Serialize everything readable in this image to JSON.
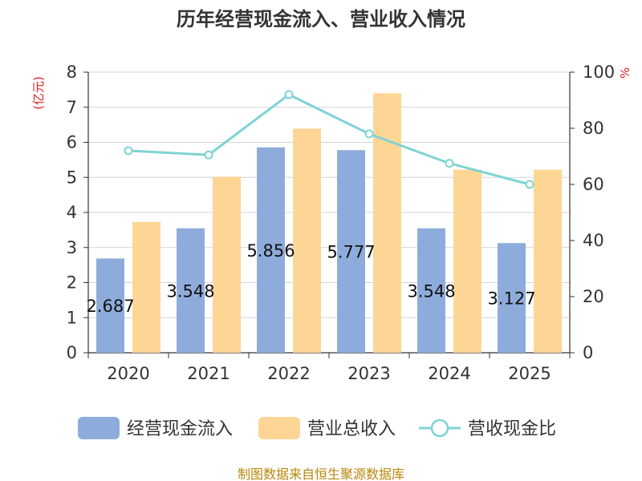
{
  "chart_data": {
    "type": "bar",
    "title": "历年经营现金流入、营业收入情况",
    "categories": [
      "2020",
      "2021",
      "2022",
      "2023",
      "2024",
      "2025"
    ],
    "left_axis": {
      "unit": "(亿元)",
      "ylim": [
        0,
        8
      ],
      "ticks": [
        "0",
        "1",
        "2",
        "3",
        "4",
        "5",
        "6",
        "7",
        "8"
      ]
    },
    "right_axis": {
      "unit": "%",
      "ylim": [
        0,
        100
      ],
      "ticks": [
        "0",
        "20",
        "40",
        "60",
        "80",
        "100"
      ]
    },
    "series": [
      {
        "name": "经营现金流入",
        "type": "bar",
        "axis": "left",
        "color": "#8eacdb",
        "values": [
          2.687,
          3.548,
          5.856,
          5.777,
          3.548,
          3.127
        ],
        "labels": [
          "2.687",
          "3.548",
          "5.856",
          "5.777",
          "3.548",
          "3.127"
        ]
      },
      {
        "name": "营业总收入",
        "type": "bar",
        "axis": "left",
        "color": "#fdd696",
        "values": [
          3.73,
          5.02,
          6.39,
          7.4,
          5.22,
          5.22
        ]
      },
      {
        "name": "营收现金比",
        "type": "line",
        "axis": "right",
        "color": "#7fd3d3",
        "values": [
          72,
          70.5,
          92,
          78,
          67.5,
          60
        ]
      }
    ],
    "grid": true,
    "legend_position": "bottom"
  },
  "source": "制图数据来自恒生聚源数据库"
}
